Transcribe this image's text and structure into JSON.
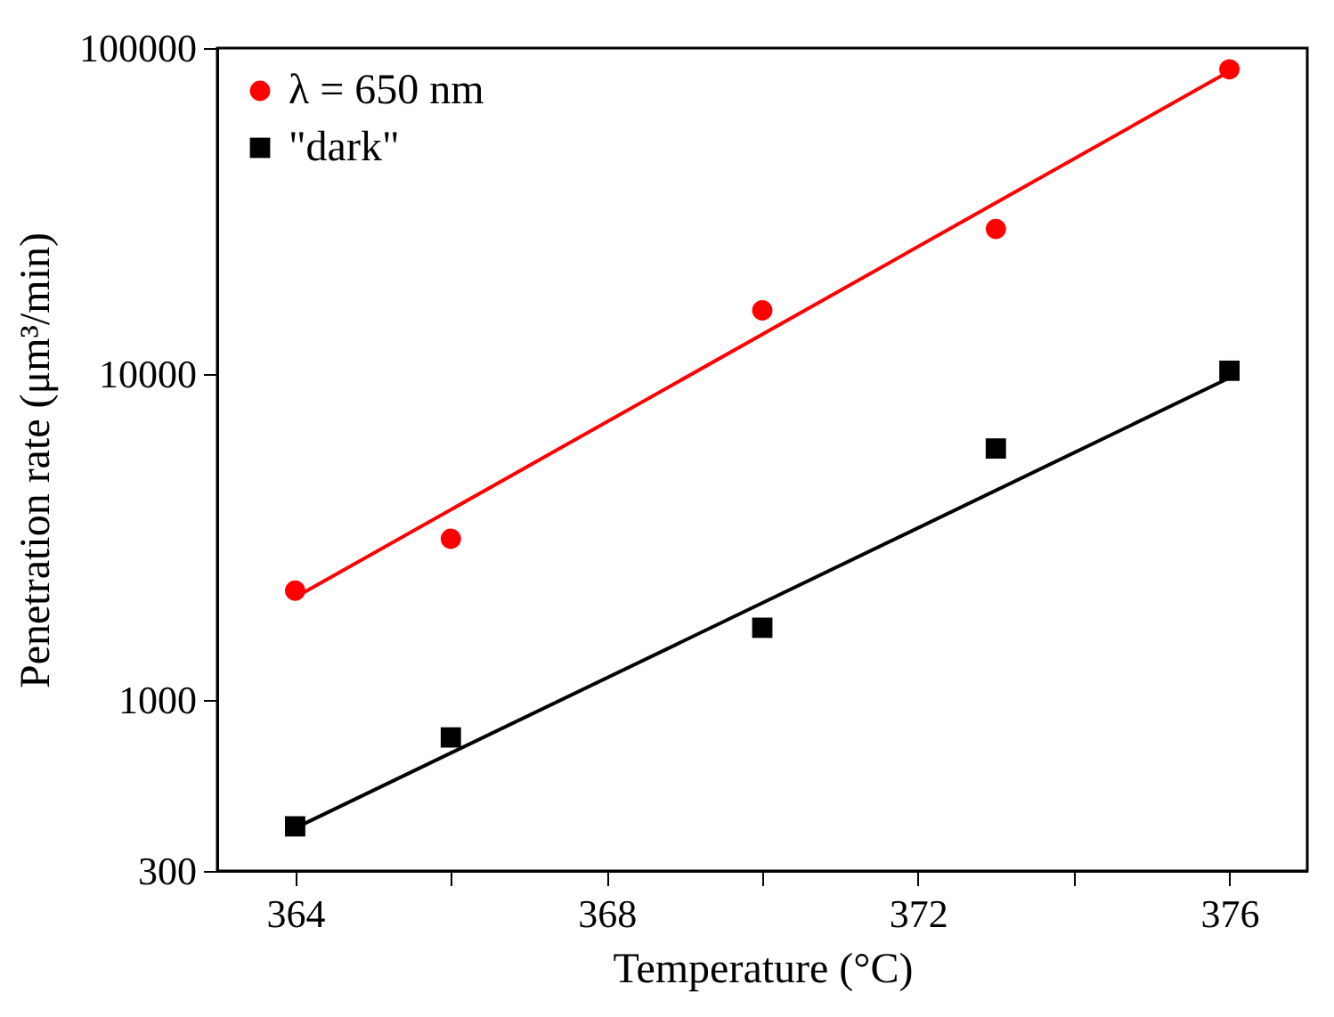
{
  "chart_data": {
    "type": "scatter",
    "xlabel": "Temperature (°C)",
    "ylabel": "Penetration rate (μm³/min)",
    "log": "y",
    "legend": "top left",
    "grid": false,
    "xlim": [
      363,
      377
    ],
    "xticks": [
      364,
      {
        "value": 366,
        "label": null
      },
      368,
      {
        "value": 370,
        "label": null
      },
      372,
      {
        "value": 374,
        "label": null
      },
      376
    ],
    "ylim": [
      300,
      100000
    ],
    "yticks": [
      300,
      1000,
      10000,
      100000
    ],
    "series": [
      {
        "name": "λ = 650 nm",
        "marker": "circle",
        "color": "#ff0000",
        "x": [
          364,
          366,
          370,
          373,
          376
        ],
        "values": [
          2170,
          3130,
          15700,
          27900,
          86100
        ]
      },
      {
        "name": "\"dark\"",
        "marker": "square",
        "color": "#000000",
        "x": [
          364,
          366,
          370,
          373,
          376
        ],
        "values": [
          411,
          770,
          1670,
          5920,
          10250
        ]
      },
      {
        "type": "line",
        "color": "#ff0000",
        "x": [
          364,
          376
        ],
        "values": [
          2070,
          84900
        ]
      },
      {
        "type": "line",
        "color": "#000000",
        "x": [
          364,
          376
        ],
        "values": [
          406,
          9750
        ]
      }
    ]
  }
}
